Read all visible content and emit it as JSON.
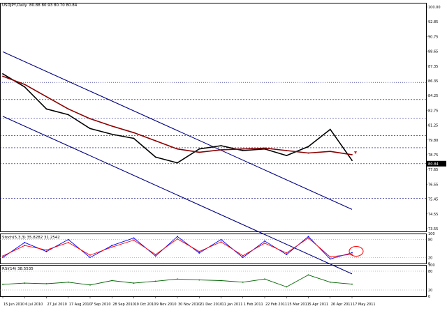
{
  "chart_data": [
    {
      "type": "line",
      "title": "USDJPY,Daily",
      "header_values": "80.88 80.93 80.70 80.84",
      "y_ticks": [
        "100.00",
        "92.85",
        "90.75",
        "88.65",
        "87.35",
        "86.35",
        "84.25",
        "82.75",
        "81.25",
        "79.80",
        "78.75",
        "77.65",
        "76.55",
        "75.45",
        "74.55",
        "73.55"
      ],
      "ylim": [
        72.5,
        100.5
      ],
      "grid_levels_dashed": [
        88.65,
        86.35,
        84.25,
        82.75,
        80.8,
        76.55
      ],
      "grid_levels_dotted": [
        90.75
      ],
      "x": [
        "15 Jun 2010",
        "6 Jul 2010",
        "27 Jul 2010",
        "17 Aug 2010",
        "7 Sep 2010",
        "28 Sep 2010",
        "19 Oct 2010",
        "9 Nov 2010",
        "30 Nov 2010",
        "21 Dec 2010",
        "11 Jan 2011",
        "1 Feb 2011",
        "22 Feb 2011",
        "15 Mar 2011",
        "5 Apr 2011",
        "26 Apr 2011",
        "17 May 2011"
      ],
      "x_tick_labels": [
        "15 Jun 2010",
        "6 Jul 2010",
        "27 Jul 2010",
        "17 Aug 2010",
        "7 Sep 2010",
        "28 Sep 2010",
        "19 Oct 2010",
        "9 Nov 2010",
        "30 Nov 2010",
        "21 Dec 2010",
        "11 Jan 2011",
        "1 Feb 2011",
        "22 Feb 2011",
        "15 Mar 2011",
        "5 Apr 2011",
        "26 Apr 2011",
        "17 May 2011"
      ],
      "series": [
        {
          "name": "",
          "values": [
            91.8,
            90.2,
            87.5,
            86.8,
            85.1,
            84.4,
            83.9,
            81.6,
            80.9,
            82.6,
            83.0,
            82.4,
            82.6,
            81.8,
            82.9,
            85.0,
            81.2
          ],
          "color": "#000000"
        },
        {
          "name": "",
          "values": [
            91.5,
            90.5,
            89.0,
            87.5,
            86.3,
            85.4,
            84.6,
            83.6,
            82.6,
            82.2,
            82.5,
            82.6,
            82.7,
            82.4,
            82.1,
            82.3,
            81.9
          ],
          "color": "#8b0000"
        }
      ],
      "channel": [
        {
          "from": [
            "15 Jun 2010",
            94.5
          ],
          "to": [
            "17 May 2011",
            75.2
          ]
        },
        {
          "from": [
            "15 Jun 2010",
            86.6
          ],
          "to": [
            "17 May 2011",
            67.3
          ]
        }
      ],
      "current_price_label": "80.84",
      "signal_marker": "down-arrow",
      "grid": "horizontal dashed",
      "line_color": "#000080"
    },
    {
      "type": "line",
      "title": "Stoch(5,3,3) 35.8282 31.2542",
      "ylim": [
        0,
        100
      ],
      "levels": [
        80,
        20
      ],
      "y_ticks": [
        "100",
        "80",
        "20",
        "0"
      ],
      "x": [
        "15 Jun 2010",
        "6 Jul 2010",
        "27 Jul 2010",
        "17 Aug 2010",
        "7 Sep 2010",
        "28 Sep 2010",
        "19 Oct 2010",
        "9 Nov 2010",
        "30 Nov 2010",
        "21 Dec 2010",
        "11 Jan 2011",
        "1 Feb 2011",
        "22 Feb 2011",
        "15 Mar 2011",
        "5 Apr 2011",
        "26 Apr 2011",
        "17 May 2011"
      ],
      "series": [
        {
          "name": "",
          "values": [
            20,
            70,
            40,
            80,
            20,
            60,
            85,
            25,
            90,
            35,
            80,
            20,
            75,
            30,
            90,
            15,
            36
          ],
          "color": "#0000ff"
        },
        {
          "name": "",
          "values": [
            25,
            60,
            45,
            70,
            28,
            55,
            78,
            30,
            82,
            40,
            72,
            26,
            68,
            35,
            85,
            22,
            31
          ],
          "color": "#ff0000"
        }
      ],
      "highlight": "red ellipse at latest values"
    },
    {
      "type": "line",
      "title": "RSI(14) 38.5535",
      "ylim": [
        0,
        100
      ],
      "levels": [
        80,
        20
      ],
      "y_ticks": [
        "100",
        "80",
        "20",
        "0"
      ],
      "x": [
        "15 Jun 2010",
        "6 Jul 2010",
        "27 Jul 2010",
        "17 Aug 2010",
        "7 Sep 2010",
        "28 Sep 2010",
        "19 Oct 2010",
        "9 Nov 2010",
        "30 Nov 2010",
        "21 Dec 2010",
        "11 Jan 2011",
        "1 Feb 2011",
        "22 Feb 2011",
        "15 Mar 2011",
        "5 Apr 2011",
        "26 Apr 2011",
        "17 May 2011"
      ],
      "series": [
        {
          "name": "",
          "values": [
            38,
            42,
            40,
            45,
            36,
            50,
            42,
            48,
            55,
            52,
            50,
            45,
            55,
            30,
            68,
            45,
            38.6
          ],
          "color": "#006400"
        }
      ]
    }
  ]
}
